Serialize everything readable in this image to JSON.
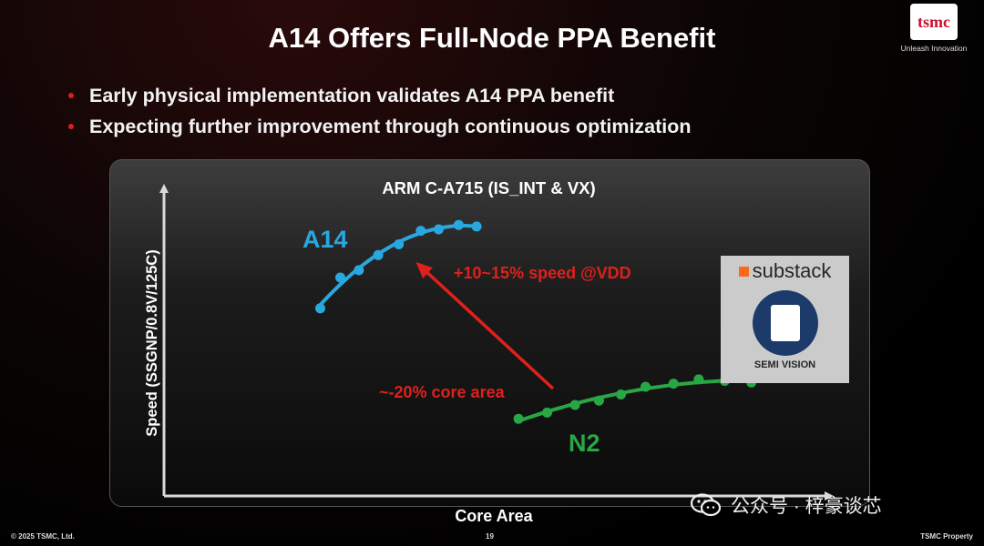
{
  "slide": {
    "title": "A14 Offers Full-Node PPA Benefit",
    "bullets": [
      "Early physical implementation validates A14 PPA benefit",
      "Expecting further improvement through continuous optimization"
    ],
    "logo_text": "tsmc",
    "tagline": "Unleash Innovation",
    "footer_left": "© 2025 TSMC, Ltd.",
    "page_number": "19",
    "footer_right": "TSMC Property",
    "colors": {
      "a14": "#29a8e0",
      "n2": "#28a745",
      "annotation": "#e0201b",
      "bullet": "#e01b22"
    }
  },
  "watermark": {
    "substack": "substack",
    "semivision": "SEMI VISION",
    "wechat": "公众号 · 梓豪谈芯"
  },
  "chart_data": {
    "type": "scatter",
    "title": "ARM C-A715 (IS_INT & VX)",
    "xlabel": "Core Area",
    "ylabel": "Speed (SSGNP/0.8V/125C)",
    "axis_units": "relative (no tick labels shown)",
    "xlim": [
      0,
      100
    ],
    "ylim": [
      0,
      100
    ],
    "series": [
      {
        "name": "A14",
        "color": "#29a8e0",
        "x": [
          23.5,
          26.5,
          29.3,
          32.2,
          35.3,
          38.6,
          41.3,
          44.3,
          47.0
        ],
        "y": [
          61.0,
          71.0,
          73.4,
          78.3,
          81.8,
          86.2,
          86.7,
          88.1,
          87.6
        ]
      },
      {
        "name": "N2",
        "color": "#28a745",
        "x": [
          53.3,
          57.6,
          61.8,
          65.4,
          68.7,
          72.4,
          76.6,
          80.4,
          84.3,
          88.3
        ],
        "y": [
          25.1,
          27.1,
          29.6,
          31.0,
          33.0,
          35.5,
          36.5,
          37.9,
          37.4,
          36.9
        ]
      }
    ],
    "annotations": [
      {
        "text": "+10~15% speed @VDD",
        "color": "#e0201b"
      },
      {
        "text": "~-20% core area",
        "color": "#e0201b"
      }
    ]
  }
}
